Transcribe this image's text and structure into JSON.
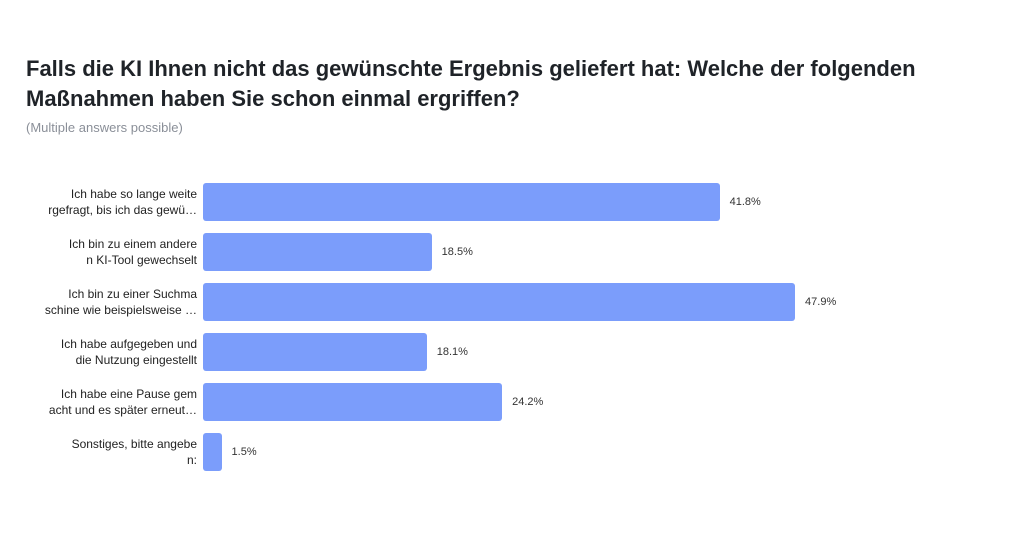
{
  "chart_data": {
    "type": "bar",
    "orientation": "horizontal",
    "title": "Falls die KI Ihnen nicht das gewünschte Ergebnis geliefert hat: Welche der folgenden Maßnahmen haben Sie schon einmal ergriffen?",
    "subtitle": "(Multiple answers possible)",
    "categories": [
      "Ich habe so lange weite\nrgefragt, bis ich das gewü…",
      "Ich bin zu einem andere\nn KI-Tool gewechselt",
      "Ich bin zu einer Suchma\nschine wie beispielsweise …",
      "Ich habe aufgegeben und\ndie Nutzung eingestellt",
      "Ich habe eine Pause gem\nacht und es später erneut…",
      "Sonstiges, bitte angebe\nn:"
    ],
    "values": [
      41.8,
      18.5,
      47.9,
      18.1,
      24.2,
      1.5
    ],
    "value_labels": [
      "41.8%",
      "18.5%",
      "47.9%",
      "18.1%",
      "24.2%",
      "1.5%"
    ],
    "color": "#7b9dfb"
  }
}
